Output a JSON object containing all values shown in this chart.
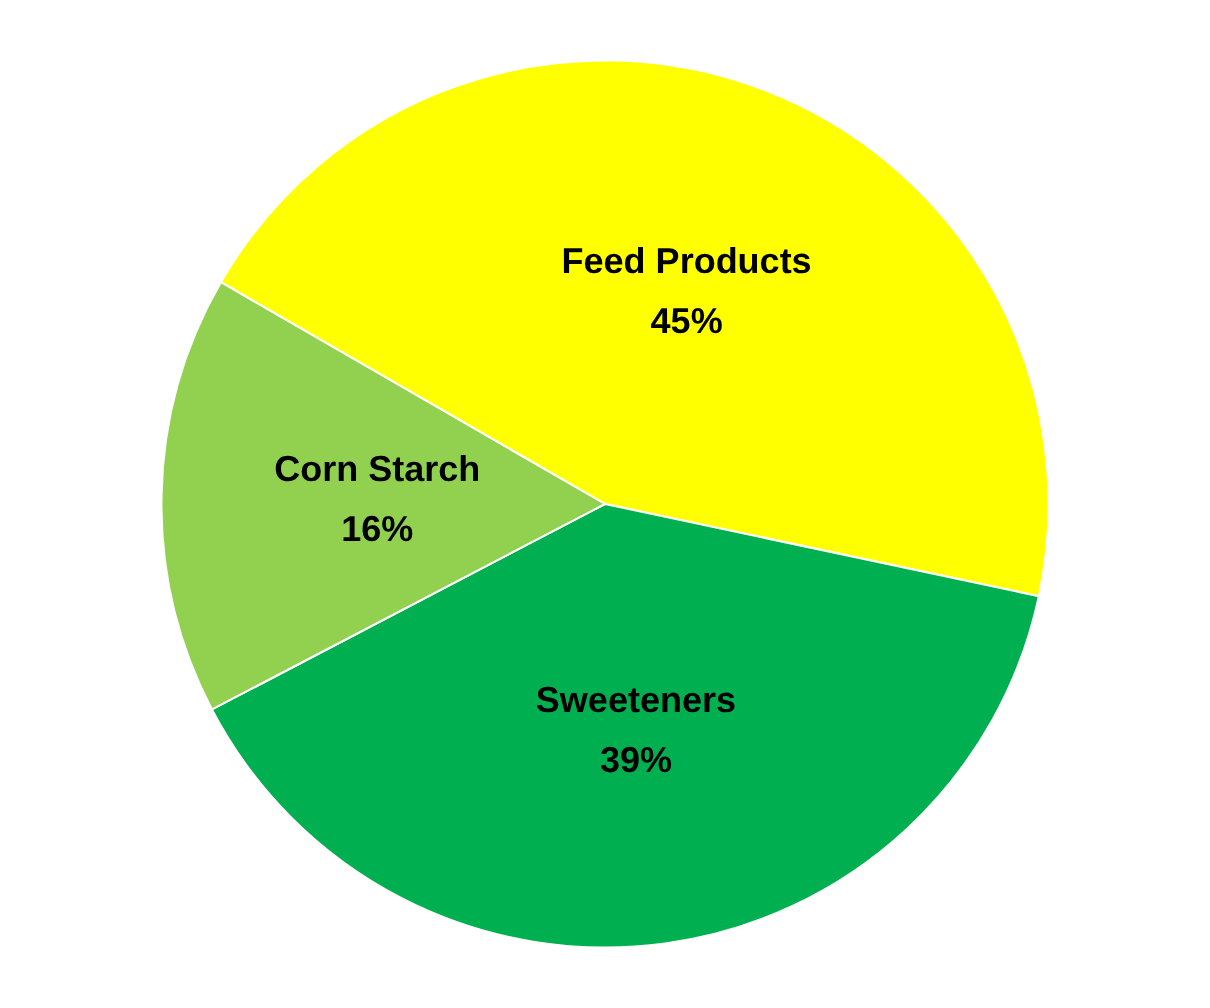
{
  "chart_data": {
    "type": "pie",
    "categories": [
      "Feed Products",
      "Sweeteners",
      "Corn Starch"
    ],
    "values": [
      45,
      39,
      16
    ],
    "colors": [
      "#ffff00",
      "#00b050",
      "#92d050"
    ],
    "value_labels": [
      "45%",
      "39%",
      "16%"
    ],
    "legend": false
  }
}
